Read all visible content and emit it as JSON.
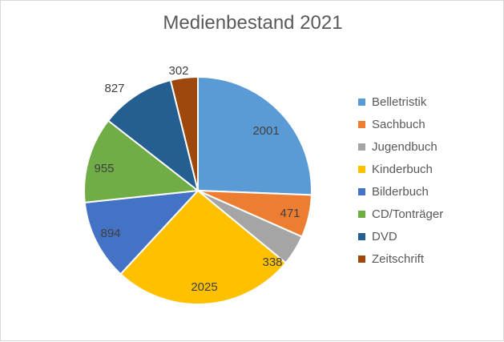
{
  "chart_data": {
    "type": "pie",
    "title": "Medienbestand 2021",
    "categories": [
      "Belletristik",
      "Sachbuch",
      "Jugendbuch",
      "Kinderbuch",
      "Bilderbuch",
      "CD/Tonträger",
      "DVD",
      "Zeitschrift"
    ],
    "values": [
      2001,
      471,
      338,
      2025,
      894,
      955,
      827,
      302
    ],
    "colors": [
      "#5b9bd5",
      "#ed7d31",
      "#a5a5a5",
      "#ffc000",
      "#4472c4",
      "#70ad47",
      "#255e91",
      "#9e480e"
    ],
    "legend_position": "right",
    "data_labels": true
  }
}
